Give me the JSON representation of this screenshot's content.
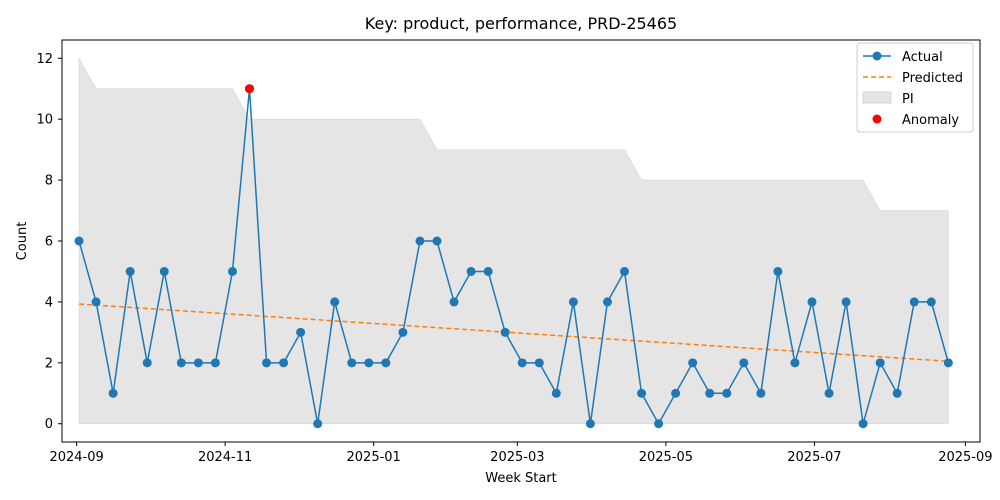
{
  "chart_data": {
    "type": "line",
    "title": "Key: product, performance, PRD-25465",
    "xlabel": "Week Start",
    "ylabel": "Count",
    "ylim": [
      -0.6,
      12.6
    ],
    "xlim": [
      "2024-08-26",
      "2025-09-07"
    ],
    "grid": false,
    "legend_position": "top-right",
    "x_ticks": [
      {
        "date": "2024-09-01",
        "label": "2024-09"
      },
      {
        "date": "2024-11-01",
        "label": "2024-11"
      },
      {
        "date": "2025-01-01",
        "label": "2025-01"
      },
      {
        "date": "2025-03-01",
        "label": "2025-03"
      },
      {
        "date": "2025-05-01",
        "label": "2025-05"
      },
      {
        "date": "2025-07-01",
        "label": "2025-07"
      },
      {
        "date": "2025-09-01",
        "label": "2025-09"
      }
    ],
    "y_ticks": [
      0,
      2,
      4,
      6,
      8,
      10,
      12
    ],
    "x": [
      "2024-09-02",
      "2024-09-09",
      "2024-09-16",
      "2024-09-23",
      "2024-09-30",
      "2024-10-07",
      "2024-10-14",
      "2024-10-21",
      "2024-10-28",
      "2024-11-04",
      "2024-11-11",
      "2024-11-18",
      "2024-11-25",
      "2024-12-02",
      "2024-12-09",
      "2024-12-16",
      "2024-12-23",
      "2024-12-30",
      "2025-01-06",
      "2025-01-13",
      "2025-01-20",
      "2025-01-27",
      "2025-02-03",
      "2025-02-10",
      "2025-02-17",
      "2025-02-24",
      "2025-03-03",
      "2025-03-10",
      "2025-03-17",
      "2025-03-24",
      "2025-03-31",
      "2025-04-07",
      "2025-04-14",
      "2025-04-21",
      "2025-04-28",
      "2025-05-05",
      "2025-05-12",
      "2025-05-19",
      "2025-05-26",
      "2025-06-02",
      "2025-06-09",
      "2025-06-16",
      "2025-06-23",
      "2025-06-30",
      "2025-07-07",
      "2025-07-14",
      "2025-07-21",
      "2025-07-28",
      "2025-08-04",
      "2025-08-11",
      "2025-08-18",
      "2025-08-25"
    ],
    "series": [
      {
        "name": "Actual",
        "color": "#1f77b4",
        "values": [
          6,
          4,
          1,
          5,
          2,
          5,
          2,
          2,
          2,
          5,
          11,
          2,
          2,
          3,
          0,
          4,
          2,
          2,
          2,
          3,
          6,
          6,
          4,
          5,
          5,
          3,
          2,
          2,
          1,
          4,
          0,
          4,
          5,
          1,
          0,
          1,
          2,
          1,
          1,
          2,
          1,
          5,
          2,
          4,
          1,
          4,
          0,
          2,
          1,
          4,
          4,
          2
        ]
      },
      {
        "name": "Predicted",
        "color": "#ff7f0e",
        "style": "dashed",
        "start": 3.93,
        "end": 2.05
      },
      {
        "name": "PI",
        "color": "#e5e5e5",
        "lower": 0,
        "upper": [
          12,
          11,
          11,
          11,
          11,
          11,
          11,
          11,
          11,
          11,
          10,
          10,
          10,
          10,
          10,
          10,
          10,
          10,
          10,
          10,
          10,
          9,
          9,
          9,
          9,
          9,
          9,
          9,
          9,
          9,
          9,
          9,
          9,
          8,
          8,
          8,
          8,
          8,
          8,
          8,
          8,
          8,
          8,
          8,
          8,
          8,
          8,
          7,
          7,
          7,
          7,
          7
        ]
      },
      {
        "name": "Anomaly",
        "color": "#ff0000",
        "points": [
          {
            "x": "2024-11-11",
            "y": 11
          }
        ]
      }
    ]
  }
}
